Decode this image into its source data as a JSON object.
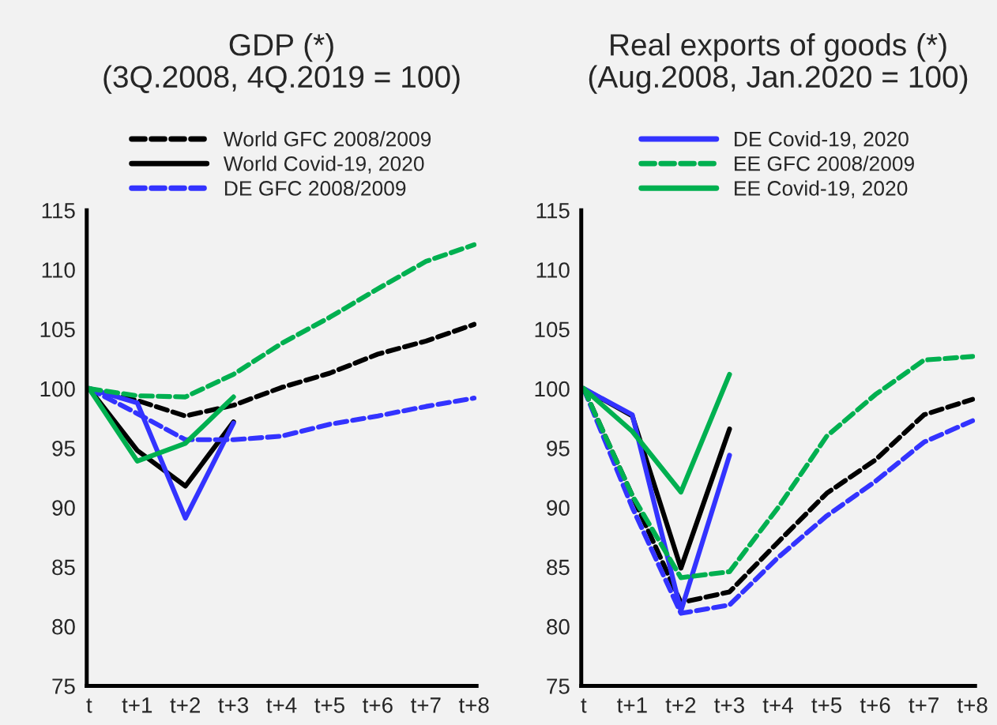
{
  "chart_data": [
    {
      "type": "line",
      "title": "GDP (*)\n(3Q.2008, 4Q.2019 = 100)",
      "categories": [
        "t",
        "t+1",
        "t+2",
        "t+3",
        "t+4",
        "t+5",
        "t+6",
        "t+7",
        "t+8"
      ],
      "ylim": [
        75,
        115
      ],
      "yticks": [
        75,
        80,
        85,
        90,
        95,
        100,
        105,
        110,
        115
      ],
      "legend": "top",
      "grid": false,
      "marker": "none",
      "series": [
        {
          "name": "World GFC 2008/2009",
          "color": "#000000",
          "line_style": "dashed",
          "values": [
            100,
            99,
            97.7,
            98.6,
            100.1,
            101.3,
            102.9,
            104,
            105.4
          ]
        },
        {
          "name": "World Covid-19, 2020",
          "color": "#000000",
          "line_style": "solid",
          "values": [
            100,
            94.8,
            91.8,
            97.2,
            null,
            null,
            null,
            null,
            null
          ]
        },
        {
          "name": "DE GFC 2008/2009",
          "color": "#3333ff",
          "line_style": "dashed",
          "values": [
            100,
            97.9,
            95.7,
            95.7,
            96,
            97,
            97.7,
            98.5,
            99.2
          ]
        },
        {
          "color": "#3333ff",
          "line_style": "solid",
          "values": [
            100,
            98.8,
            89.1,
            97.1,
            null,
            null,
            null,
            null,
            null
          ]
        },
        {
          "color": "#00b050",
          "line_style": "dashed",
          "values": [
            100,
            99.4,
            99.3,
            101.2,
            103.8,
            106,
            108.4,
            110.7,
            112.1
          ]
        },
        {
          "color": "#00b050",
          "line_style": "solid",
          "values": [
            100,
            93.9,
            95.4,
            99.3,
            null,
            null,
            null,
            null,
            null
          ]
        }
      ]
    },
    {
      "type": "line",
      "title": "Real exports of goods (*)\n(Aug.2008, Jan.2020 = 100)",
      "categories": [
        "t",
        "t+1",
        "t+2",
        "t+3",
        "t+4",
        "t+5",
        "t+6",
        "t+7",
        "t+8"
      ],
      "ylim": [
        75,
        115
      ],
      "yticks": [
        75,
        80,
        85,
        90,
        95,
        100,
        105,
        110,
        115
      ],
      "legend": "top",
      "grid": false,
      "marker": "none",
      "series": [
        {
          "color": "#000000",
          "line_style": "dashed",
          "values": [
            100,
            91,
            82,
            82.9,
            87.1,
            91.2,
            94,
            97.8,
            99.1
          ]
        },
        {
          "color": "#000000",
          "line_style": "solid",
          "values": [
            100,
            97.7,
            84.9,
            96.6,
            null,
            null,
            null,
            null,
            null
          ]
        },
        {
          "color": "#3333ff",
          "line_style": "dashed",
          "values": [
            100,
            90,
            81.1,
            81.8,
            85.8,
            89.3,
            92.2,
            95.5,
            97.3
          ]
        },
        {
          "name": "DE Covid-19, 2020",
          "color": "#3333ff",
          "line_style": "solid",
          "values": [
            100,
            97.8,
            81.3,
            94.4,
            null,
            null,
            null,
            null,
            null
          ]
        },
        {
          "name": "EE GFC 2008/2009",
          "color": "#00b050",
          "line_style": "dashed",
          "values": [
            100,
            91,
            84.1,
            84.6,
            90,
            96,
            99.5,
            102.4,
            102.7
          ]
        },
        {
          "name": "EE Covid-19, 2020",
          "color": "#00b050",
          "line_style": "solid",
          "values": [
            100,
            96.4,
            91.3,
            101.2,
            null,
            null,
            null,
            null,
            null
          ]
        }
      ]
    }
  ]
}
